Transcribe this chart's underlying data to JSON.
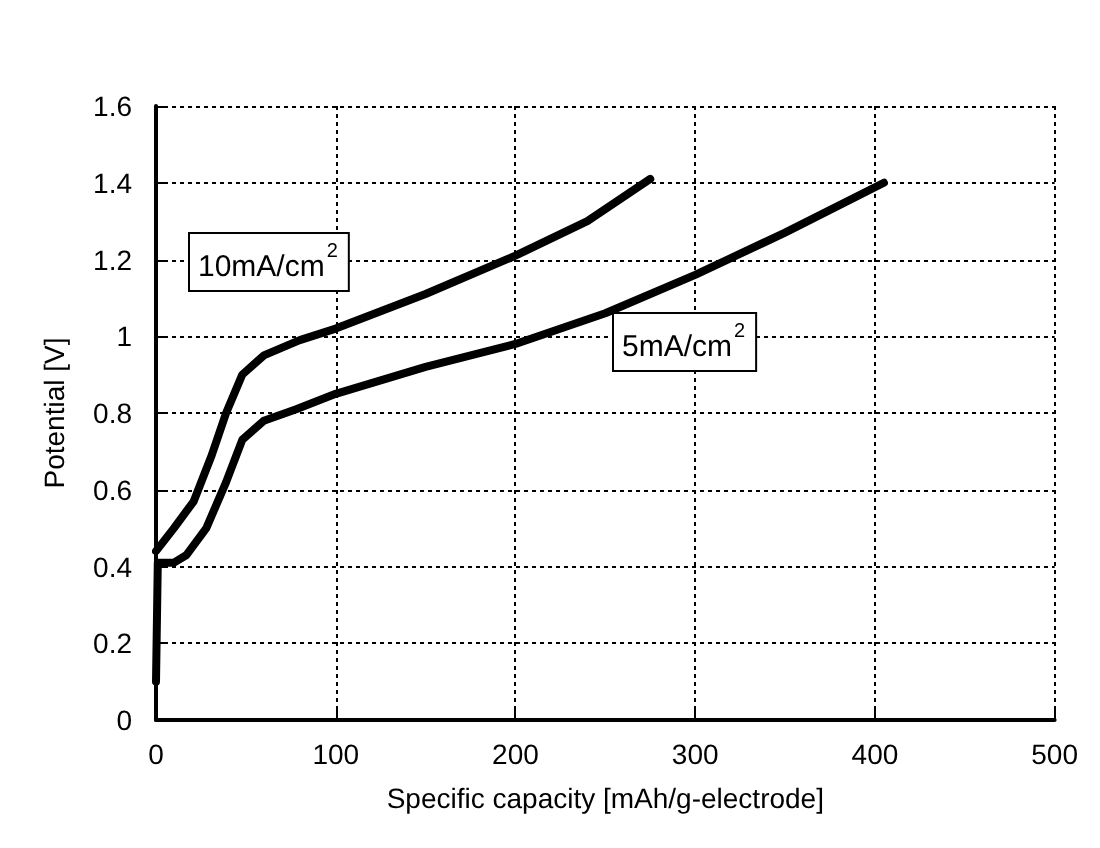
{
  "chart_data": {
    "type": "line",
    "xlabel": "Specific capacity [mAh/g-electrode]",
    "ylabel": "Potential [V]",
    "series": [
      {
        "name": "10mA/cm$^{2}$",
        "color": "#000000",
        "x": [
          0,
          10,
          21,
          31,
          39,
          48,
          60,
          80,
          100,
          150,
          200,
          240,
          275
        ],
        "values": [
          0.44,
          0.5,
          0.57,
          0.69,
          0.8,
          0.9,
          0.95,
          0.99,
          1.02,
          1.11,
          1.21,
          1.3,
          1.41
        ]
      },
      {
        "name": "5mA/cm$^{2}$",
        "color": "#000000",
        "x": [
          0,
          1,
          10,
          17,
          28,
          39,
          48,
          60,
          78,
          100,
          150,
          200,
          250,
          300,
          350,
          405
        ],
        "values": [
          0.1,
          0.41,
          0.41,
          0.43,
          0.5,
          0.62,
          0.73,
          0.78,
          0.81,
          0.85,
          0.92,
          0.98,
          1.06,
          1.16,
          1.27,
          1.4
        ]
      }
    ],
    "xlim": [
      0,
      500
    ],
    "xticks": [
      0,
      100,
      200,
      300,
      400,
      500
    ],
    "ylim": [
      0,
      1.6
    ],
    "yticks": [
      0,
      0.2,
      0.4,
      0.6,
      0.8,
      1,
      1.2,
      1.4,
      1.6
    ],
    "grid": true,
    "legend": false,
    "marker": "none",
    "line_style": "solid"
  }
}
